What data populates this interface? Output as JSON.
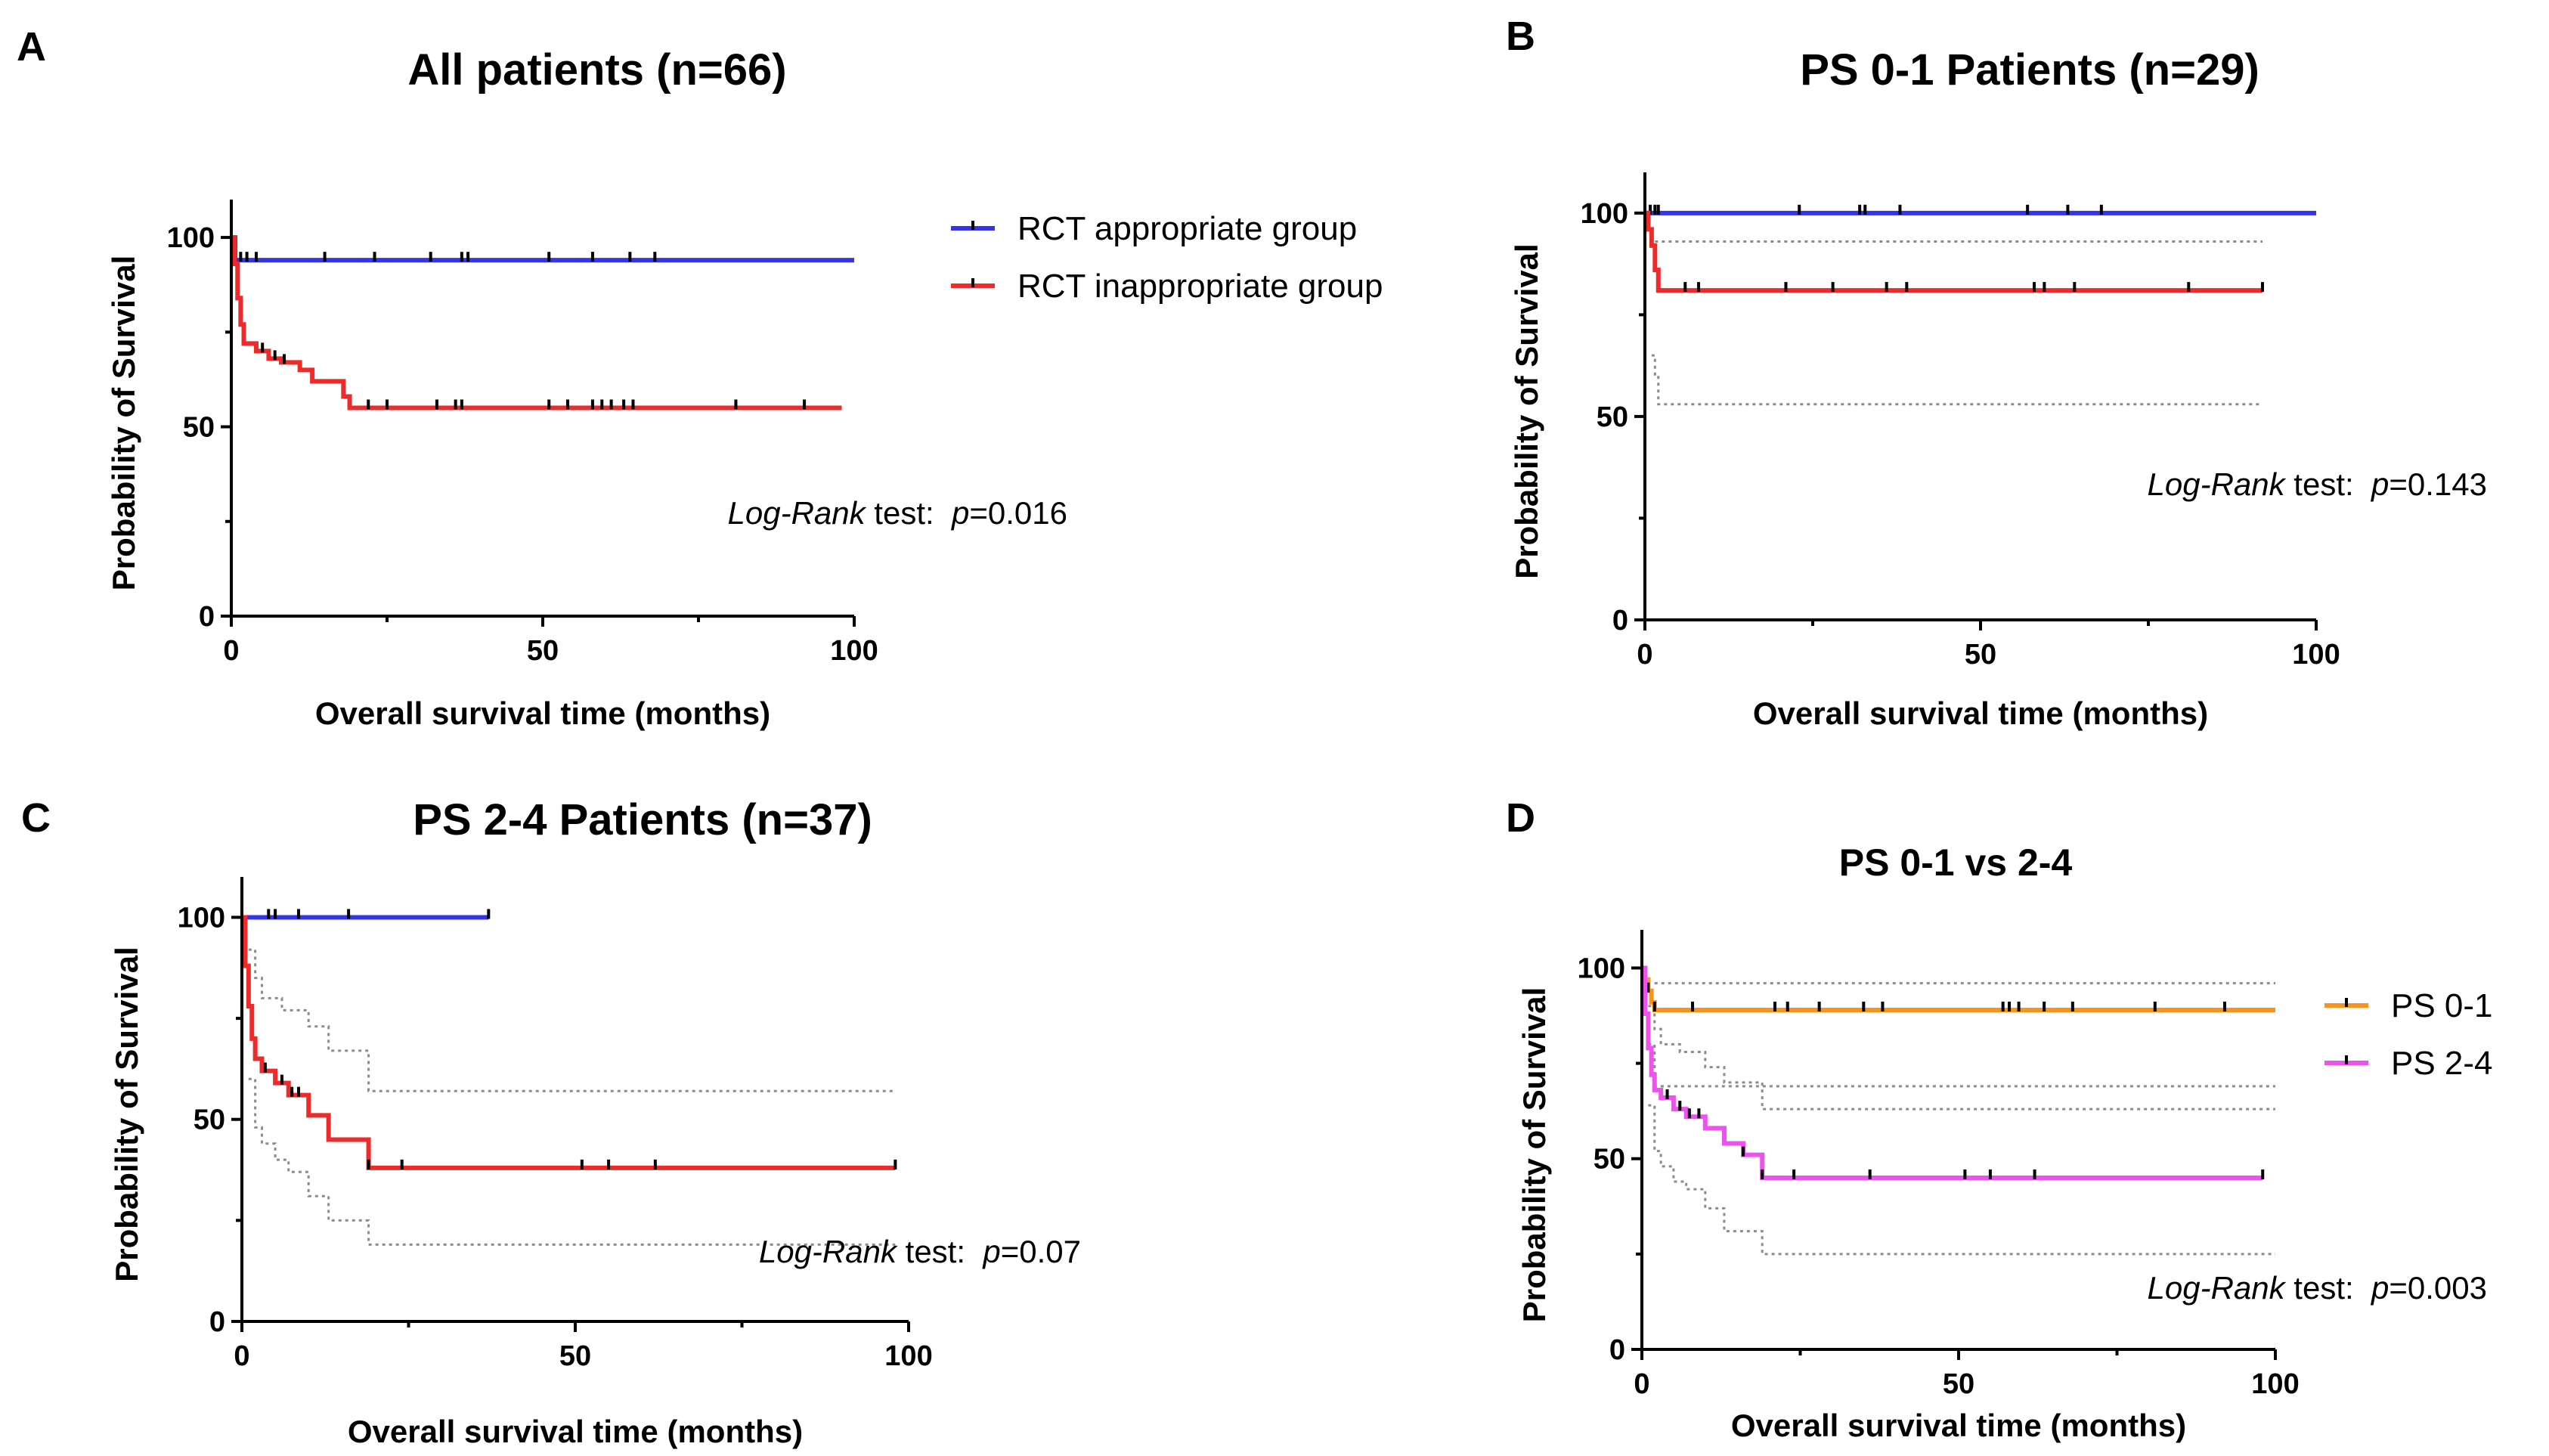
{
  "colors": {
    "rct_appropriate": "#3434e8",
    "rct_inappropriate": "#ee2b2b",
    "ps01": "#f7931e",
    "ps24": "#ee52ee",
    "ci": "#8c8c8c"
  },
  "chart_data": [
    {
      "type": "line",
      "subtype": "kaplan-meier",
      "panel": "A",
      "title": "All patients (n=66)",
      "xlabel": "Overall survival time (months)",
      "ylabel": "Probability of Survival",
      "xlim": [
        0,
        100
      ],
      "ylim": [
        0,
        110
      ],
      "xticks": [
        0,
        50,
        100
      ],
      "yticks": [
        0,
        50,
        100
      ],
      "legend": {
        "position": "right",
        "entries": [
          {
            "label": "RCT appropriate group",
            "color_key": "rct_appropriate"
          },
          {
            "label": "RCT inappropriate group",
            "color_key": "rct_inappropriate"
          }
        ]
      },
      "note": {
        "italic1": "Log-Rank",
        "text1": " test:  ",
        "italic2": "p",
        "text2": "=0.016"
      },
      "series": [
        {
          "name": "RCT appropriate group",
          "color_key": "rct_appropriate",
          "x": [
            0,
            0.6,
            0.6,
            100
          ],
          "y": [
            100,
            100,
            94,
            94
          ],
          "censor": [
            1.5,
            2.5,
            4,
            15,
            23,
            32,
            37,
            38,
            51,
            58,
            64,
            68
          ]
        },
        {
          "name": "RCT inappropriate group",
          "color_key": "rct_inappropriate",
          "x": [
            0,
            0.5,
            1,
            1.5,
            2,
            4,
            6,
            8,
            11,
            13,
            18,
            19,
            98
          ],
          "y": [
            100,
            93,
            84,
            77,
            72,
            70,
            68,
            67,
            65,
            62,
            58,
            55,
            55
          ],
          "censor": [
            5,
            7,
            8.5,
            22,
            25,
            33,
            36,
            37,
            51,
            54,
            58,
            59.5,
            61,
            63,
            64.5,
            81,
            92
          ]
        }
      ]
    },
    {
      "type": "line",
      "subtype": "kaplan-meier",
      "panel": "B",
      "title": "PS 0-1 Patients (n=29)",
      "xlabel": "Overall survival time (months)",
      "ylabel": "Probability of Survival",
      "xlim": [
        0,
        100
      ],
      "ylim": [
        0,
        110
      ],
      "xticks": [
        0,
        50,
        100
      ],
      "yticks": [
        0,
        50,
        100
      ],
      "note": {
        "italic1": "Log-Rank",
        "text1": " test:  ",
        "italic2": "p",
        "text2": "=0.143"
      },
      "series": [
        {
          "name": "RCT appropriate group",
          "color_key": "rct_appropriate",
          "x": [
            0,
            100
          ],
          "y": [
            100,
            100
          ],
          "censor": [
            0.8,
            1.5,
            2,
            23,
            32,
            32.8,
            38,
            57,
            63,
            68
          ]
        },
        {
          "name": "RCT inappropriate group",
          "color_key": "rct_inappropriate",
          "x": [
            0,
            0.5,
            1,
            1.5,
            2,
            92
          ],
          "y": [
            100,
            96,
            92,
            86,
            81,
            81
          ],
          "censor": [
            6,
            8,
            21,
            28,
            36,
            39,
            58,
            59.5,
            64,
            81,
            92
          ]
        },
        {
          "name": "upper 95% CI",
          "color_key": "ci",
          "dotted": true,
          "x": [
            1.5,
            92
          ],
          "y": [
            93,
            93
          ]
        },
        {
          "name": "lower 95% CI",
          "color_key": "ci",
          "dotted": true,
          "x": [
            1,
            1.5,
            2,
            92
          ],
          "y": [
            65,
            60,
            53,
            53
          ]
        }
      ]
    },
    {
      "type": "line",
      "subtype": "kaplan-meier",
      "panel": "C",
      "title": "PS 2-4 Patients (n=37)",
      "xlabel": "Overall survival time (months)",
      "ylabel": "Probability of Survival",
      "xlim": [
        0,
        100
      ],
      "ylim": [
        0,
        110
      ],
      "xticks": [
        0,
        50,
        100
      ],
      "yticks": [
        0,
        50,
        100
      ],
      "note": {
        "italic1": "Log-Rank",
        "text1": " test:  ",
        "italic2": "p",
        "text2": "=0.07"
      },
      "series": [
        {
          "name": "RCT appropriate group",
          "color_key": "rct_appropriate",
          "x": [
            0,
            37
          ],
          "y": [
            100,
            100
          ],
          "censor": [
            4,
            5,
            8.5,
            16,
            37
          ]
        },
        {
          "name": "RCT inappropriate group",
          "color_key": "rct_inappropriate",
          "x": [
            0,
            0.5,
            1,
            1.5,
            2,
            3,
            5,
            7,
            10,
            13,
            19,
            98
          ],
          "y": [
            100,
            88,
            78,
            70,
            65,
            62,
            59,
            56,
            51,
            45,
            38,
            38
          ],
          "censor": [
            3.5,
            6,
            7.5,
            8.5,
            19,
            24,
            51,
            55,
            62,
            98
          ]
        },
        {
          "name": "upper 95% CI",
          "color_key": "ci",
          "dotted": true,
          "x": [
            1,
            2,
            3,
            6,
            10,
            13,
            19,
            98
          ],
          "y": [
            92,
            85,
            80,
            77,
            73,
            67,
            57,
            57
          ]
        },
        {
          "name": "lower 95% CI",
          "color_key": "ci",
          "dotted": true,
          "x": [
            1,
            2,
            3,
            5,
            7,
            10,
            13,
            19,
            98
          ],
          "y": [
            60,
            48,
            44,
            40,
            37,
            31,
            25,
            19,
            19
          ]
        }
      ]
    },
    {
      "type": "line",
      "subtype": "kaplan-meier",
      "panel": "D",
      "title": "PS 0-1 vs 2-4",
      "xlabel": "Overall survival time (months)",
      "ylabel": "Probability of Survival",
      "xlim": [
        0,
        100
      ],
      "ylim": [
        0,
        110
      ],
      "xticks": [
        0,
        50,
        100
      ],
      "yticks": [
        0,
        50,
        100
      ],
      "legend": {
        "position": "right",
        "entries": [
          {
            "label": "PS 0-1",
            "color_key": "ps01"
          },
          {
            "label": "PS 2-4",
            "color_key": "ps24"
          }
        ]
      },
      "note": {
        "italic1": "Log-Rank",
        "text1": " test:  ",
        "italic2": "p",
        "text2": "=0.003"
      },
      "series": [
        {
          "name": "PS 0-1",
          "color_key": "ps01",
          "x": [
            0,
            0.5,
            1,
            1.5,
            2,
            100
          ],
          "y": [
            100,
            97,
            94,
            91,
            89,
            89
          ],
          "censor": [
            1,
            2,
            8,
            21,
            23,
            28,
            35,
            38,
            57,
            58,
            59.5,
            63.5,
            68,
            81,
            92
          ]
        },
        {
          "name": "PS 2-4",
          "color_key": "ps24",
          "x": [
            0,
            0.5,
            1,
            1.5,
            2,
            3,
            5,
            7,
            10,
            13,
            16,
            19,
            98
          ],
          "y": [
            100,
            88,
            79,
            72,
            68,
            66,
            63,
            61,
            58,
            54,
            51,
            45,
            45
          ],
          "censor": [
            4,
            6,
            7.5,
            9,
            16,
            19,
            24,
            36,
            51,
            55,
            62,
            98
          ]
        },
        {
          "name": "PS 0-1 upper 95% CI",
          "color_key": "ci",
          "dotted": true,
          "x": [
            2,
            100
          ],
          "y": [
            96,
            96
          ]
        },
        {
          "name": "PS 0-1 lower 95% CI",
          "color_key": "ci",
          "dotted": true,
          "x": [
            1,
            2,
            100
          ],
          "y": [
            80,
            69,
            69
          ]
        },
        {
          "name": "PS 2-4 upper 95% CI",
          "color_key": "ci",
          "dotted": true,
          "x": [
            1,
            2,
            3,
            6,
            10,
            13,
            19,
            100
          ],
          "y": [
            90,
            84,
            80,
            78,
            74,
            70,
            63,
            63
          ]
        },
        {
          "name": "PS 2-4 lower 95% CI",
          "color_key": "ci",
          "dotted": true,
          "x": [
            1,
            2,
            3,
            5,
            7,
            10,
            13,
            19,
            100
          ],
          "y": [
            64,
            52,
            48,
            44,
            42,
            37,
            31,
            25,
            25
          ]
        }
      ]
    }
  ]
}
